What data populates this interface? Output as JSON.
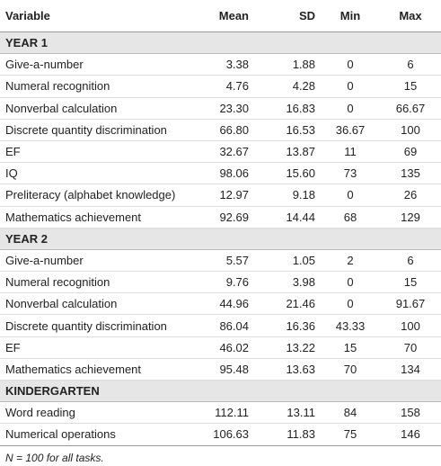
{
  "table": {
    "header": [
      "Variable",
      "Mean",
      "SD",
      "Min",
      "Max"
    ],
    "sections": [
      {
        "title": "YEAR 1",
        "rows": [
          [
            "Give-a-number",
            "3.38",
            "1.88",
            "0",
            "6"
          ],
          [
            "Numeral recognition",
            "4.76",
            "4.28",
            "0",
            "15"
          ],
          [
            "Nonverbal calculation",
            "23.30",
            "16.83",
            "0",
            "66.67"
          ],
          [
            "Discrete quantity discrimination",
            "66.80",
            "16.53",
            "36.67",
            "100"
          ],
          [
            "EF",
            "32.67",
            "13.87",
            "11",
            "69"
          ],
          [
            "IQ",
            "98.06",
            "15.60",
            "73",
            "135"
          ],
          [
            "Preliteracy (alphabet knowledge)",
            "12.97",
            "9.18",
            "0",
            "26"
          ],
          [
            "Mathematics achievement",
            "92.69",
            "14.44",
            "68",
            "129"
          ]
        ]
      },
      {
        "title": "YEAR 2",
        "rows": [
          [
            "Give-a-number",
            "5.57",
            "1.05",
            "2",
            "6"
          ],
          [
            "Numeral recognition",
            "9.76",
            "3.98",
            "0",
            "15"
          ],
          [
            "Nonverbal calculation",
            "44.96",
            "21.46",
            "0",
            "91.67"
          ],
          [
            "Discrete quantity discrimination",
            "86.04",
            "16.36",
            "43.33",
            "100"
          ],
          [
            "EF",
            "46.02",
            "13.22",
            "15",
            "70"
          ],
          [
            "Mathematics achievement",
            "95.48",
            "13.63",
            "70",
            "134"
          ]
        ]
      },
      {
        "title": "KINDERGARTEN",
        "rows": [
          [
            "Word reading",
            "112.11",
            "13.11",
            "84",
            "158"
          ],
          [
            "Numerical operations",
            "106.63",
            "11.83",
            "75",
            "146"
          ]
        ]
      }
    ],
    "footnote": "N = 100 for all tasks."
  }
}
